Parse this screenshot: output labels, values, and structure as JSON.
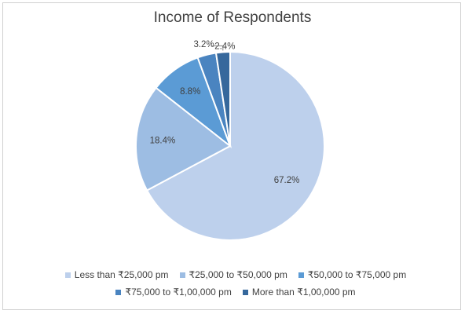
{
  "chart_data": {
    "type": "pie",
    "title": "Income of Respondents",
    "categories": [
      "Less than ₹25,000 pm",
      "₹25,000 to ₹50,000 pm",
      "₹50,000 to ₹75,000 pm",
      "₹75,000 to ₹1,00,000 pm",
      "More than ₹1,00,000 pm"
    ],
    "values": [
      67.2,
      18.4,
      8.8,
      3.2,
      2.4
    ],
    "labels": [
      "67.2%",
      "18.4%",
      "8.8%",
      "3.2%",
      "2.4%"
    ],
    "colors": [
      "#bdd0ec",
      "#9dbde3",
      "#5b9bd5",
      "#4a84c0",
      "#36689c"
    ],
    "legend_position": "bottom"
  }
}
